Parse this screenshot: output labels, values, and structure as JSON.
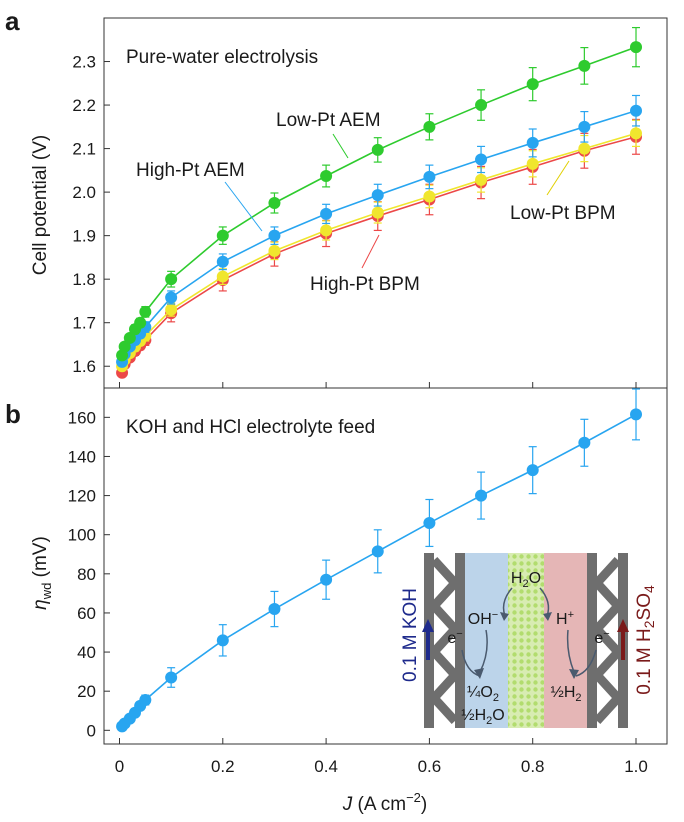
{
  "panel_labels": {
    "a": "a",
    "b": "b"
  },
  "chart_data": [
    {
      "panel": "a",
      "type": "line",
      "title": "Pure-water electrolysis",
      "xlabel": "",
      "ylabel": "Cell potential (V)",
      "xlim": [
        -0.03,
        1.06
      ],
      "ylim": [
        1.55,
        2.4
      ],
      "yticks": [
        1.6,
        1.7,
        1.8,
        1.9,
        2.0,
        2.1,
        2.2,
        2.3
      ],
      "ytick_labels": [
        "1.6",
        "1.7",
        "1.8",
        "1.9",
        "2.0",
        "2.1",
        "2.2",
        "2.3"
      ],
      "grid": false,
      "x": [
        0.005,
        0.01,
        0.02,
        0.03,
        0.04,
        0.05,
        0.1,
        0.2,
        0.3,
        0.4,
        0.5,
        0.6,
        0.7,
        0.8,
        0.9,
        1.0
      ],
      "series": [
        {
          "name": "High-Pt BPM",
          "color": "#ec4848",
          "values": [
            1.585,
            1.605,
            1.62,
            1.635,
            1.648,
            1.66,
            1.722,
            1.798,
            1.858,
            1.905,
            1.945,
            1.983,
            2.022,
            2.058,
            2.095,
            2.127
          ],
          "errors": [
            0.005,
            0.006,
            0.008,
            0.01,
            0.01,
            0.012,
            0.02,
            0.025,
            0.028,
            0.03,
            0.033,
            0.035,
            0.037,
            0.04,
            0.04,
            0.04
          ]
        },
        {
          "name": "Low-Pt BPM",
          "color": "#f0e62e",
          "values": [
            1.6,
            1.615,
            1.63,
            1.645,
            1.658,
            1.67,
            1.73,
            1.806,
            1.865,
            1.912,
            1.953,
            1.99,
            2.028,
            2.065,
            2.1,
            2.135
          ],
          "errors": [
            0.005,
            0.006,
            0.008,
            0.01,
            0.01,
            0.012,
            0.015,
            0.018,
            0.02,
            0.022,
            0.024,
            0.026,
            0.028,
            0.03,
            0.03,
            0.03
          ]
        },
        {
          "name": "High-Pt AEM",
          "color": "#28a5f0",
          "values": [
            1.61,
            1.628,
            1.645,
            1.66,
            1.675,
            1.69,
            1.758,
            1.84,
            1.9,
            1.95,
            1.993,
            2.035,
            2.075,
            2.113,
            2.15,
            2.187
          ],
          "errors": [
            0.005,
            0.006,
            0.008,
            0.01,
            0.01,
            0.012,
            0.015,
            0.018,
            0.02,
            0.022,
            0.025,
            0.027,
            0.03,
            0.032,
            0.035,
            0.035
          ]
        },
        {
          "name": "Low-Pt AEM",
          "color": "#2ecb2e",
          "values": [
            1.625,
            1.645,
            1.665,
            1.685,
            1.7,
            1.725,
            1.8,
            1.9,
            1.975,
            2.037,
            2.097,
            2.15,
            2.2,
            2.248,
            2.29,
            2.333
          ],
          "errors": [
            0.005,
            0.006,
            0.008,
            0.01,
            0.01,
            0.012,
            0.018,
            0.02,
            0.023,
            0.025,
            0.028,
            0.03,
            0.035,
            0.038,
            0.042,
            0.045
          ]
        }
      ],
      "series_labels": [
        "Low-Pt AEM",
        "High-Pt AEM",
        "Low-Pt BPM",
        "High-Pt BPM"
      ]
    },
    {
      "panel": "b",
      "type": "line",
      "title": "KOH and HCl electrolyte feed",
      "xlabel": "J (A cm⁻²)",
      "xlabel_symbol": "J",
      "xlabel_unit": " (A cm",
      "xlabel_exp": "−2",
      "xlabel_close": ")",
      "ylabel_symbol": "η",
      "ylabel_sub": "wd",
      "ylabel_unit": " (mV)",
      "xlim": [
        -0.03,
        1.06
      ],
      "ylim": [
        -7,
        175
      ],
      "xticks": [
        0,
        0.2,
        0.4,
        0.6,
        0.8,
        1.0
      ],
      "xtick_labels": [
        "0",
        "0.2",
        "0.4",
        "0.6",
        "0.8",
        "1.0"
      ],
      "yticks": [
        0,
        20,
        40,
        60,
        80,
        100,
        120,
        140,
        160
      ],
      "ytick_labels": [
        "0",
        "20",
        "40",
        "60",
        "80",
        "100",
        "120",
        "140",
        "160"
      ],
      "grid": false,
      "x": [
        0.005,
        0.01,
        0.02,
        0.03,
        0.04,
        0.05,
        0.1,
        0.2,
        0.3,
        0.4,
        0.5,
        0.6,
        0.7,
        0.8,
        0.9,
        1.0
      ],
      "series": [
        {
          "name": "ηwd",
          "color": "#28a5f0",
          "values": [
            2,
            3.5,
            6,
            9,
            12.5,
            15.5,
            27,
            46,
            62,
            77,
            91.5,
            106,
            120,
            133,
            147,
            161.5
          ],
          "errors": [
            1,
            1,
            1.5,
            2,
            2,
            2.5,
            5,
            8,
            9,
            10,
            11,
            12,
            12,
            12,
            12,
            13
          ]
        }
      ]
    }
  ],
  "inset": {
    "left_label": "0.1 M KOH",
    "right_label_prefix": "0.1 M H",
    "right_label_sub1": "2",
    "right_label_mid": "SO",
    "right_label_sub2": "4",
    "water": "H",
    "water_sub": "2",
    "water_end": "O",
    "hydroxide": "OH",
    "hydroxide_sup": "−",
    "proton": "H",
    "proton_sup": "+",
    "electron": "e",
    "electron_sup": "−",
    "o2_line1": "¼",
    "o2_line1_rest": "O",
    "o2_line1_sub": "2",
    "o2_line2": "½H",
    "o2_line2_sub": "2",
    "o2_line2_end": "O",
    "h2_prefix": "½H",
    "h2_sub": "2",
    "colors": {
      "frame": "#6e6e6e",
      "aem": "#bcd4ea",
      "cat": "#d8ecb2",
      "cat_dot": "#b2dc6e",
      "cem": "#e5b6b6",
      "koh": "#1e2a8c",
      "acid": "#7a1a1a",
      "arrow": "#4a5a6e"
    }
  }
}
